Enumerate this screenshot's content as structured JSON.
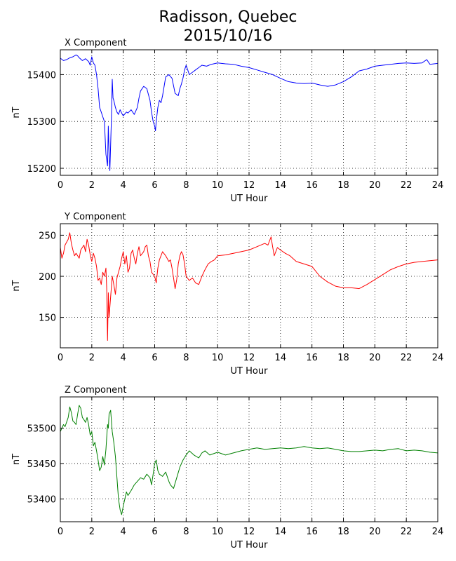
{
  "title": {
    "line1": "Radisson, Quebec",
    "line2": "2015/10/16"
  },
  "chart_data": [
    {
      "type": "line",
      "title": "X Component",
      "xlabel": "UT Hour",
      "ylabel": "nT",
      "xlim": [
        0,
        24
      ],
      "ylim": [
        15185,
        15453
      ],
      "xticks": [
        0,
        2,
        4,
        6,
        8,
        10,
        12,
        14,
        16,
        18,
        20,
        22,
        24
      ],
      "yticks": [
        15200,
        15300,
        15400
      ],
      "grid": true,
      "color": "#0000ff",
      "series": [
        {
          "x": [
            0,
            0.2,
            0.4,
            0.6,
            0.8,
            1.0,
            1.1,
            1.2,
            1.4,
            1.6,
            1.8,
            1.9,
            2.0,
            2.1,
            2.2,
            2.3,
            2.4,
            2.5,
            2.6,
            2.7,
            2.8,
            2.9,
            3.0,
            3.05,
            3.1,
            3.15,
            3.2,
            3.25,
            3.3,
            3.35,
            3.4,
            3.5,
            3.6,
            3.7,
            3.8,
            3.9,
            4.0,
            4.1,
            4.2,
            4.3,
            4.5,
            4.7,
            4.9,
            5.0,
            5.1,
            5.3,
            5.5,
            5.7,
            5.8,
            5.9,
            6.0,
            6.05,
            6.1,
            6.2,
            6.3,
            6.4,
            6.5,
            6.7,
            6.9,
            7.1,
            7.3,
            7.5,
            7.6,
            7.7,
            7.8,
            7.9,
            8.0,
            8.1,
            8.2,
            8.4,
            8.6,
            8.8,
            9.0,
            9.3,
            9.6,
            10.0,
            10.5,
            11.0,
            11.5,
            12.0,
            12.5,
            13.0,
            13.5,
            14.0,
            14.5,
            15.0,
            15.5,
            16.0,
            16.5,
            17.0,
            17.5,
            18.0,
            18.5,
            19.0,
            19.5,
            20.0,
            20.5,
            21.0,
            21.5,
            22.0,
            22.5,
            23.0,
            23.3,
            23.5,
            24.0
          ],
          "y": [
            15435,
            15430,
            15432,
            15436,
            15438,
            15442,
            15440,
            15436,
            15430,
            15434,
            15428,
            15420,
            15438,
            15425,
            15420,
            15400,
            15370,
            15330,
            15320,
            15310,
            15300,
            15230,
            15205,
            15290,
            15230,
            15195,
            15250,
            15310,
            15390,
            15350,
            15345,
            15330,
            15320,
            15315,
            15325,
            15318,
            15312,
            15316,
            15320,
            15318,
            15325,
            15315,
            15330,
            15350,
            15365,
            15375,
            15370,
            15345,
            15320,
            15300,
            15290,
            15280,
            15300,
            15330,
            15345,
            15340,
            15355,
            15395,
            15400,
            15392,
            15360,
            15355,
            15370,
            15380,
            15393,
            15410,
            15420,
            15410,
            15400,
            15405,
            15410,
            15415,
            15420,
            15418,
            15422,
            15425,
            15423,
            15422,
            15418,
            15415,
            15410,
            15405,
            15400,
            15392,
            15385,
            15382,
            15381,
            15382,
            15378,
            15375,
            15378,
            15385,
            15395,
            15408,
            15412,
            15418,
            15420,
            15422,
            15424,
            15425,
            15424,
            15425,
            15432,
            15422,
            15424
          ]
        }
      ]
    },
    {
      "type": "line",
      "title": "Y Component",
      "xlabel": "UT Hour",
      "ylabel": "nT",
      "xlim": [
        0,
        24
      ],
      "ylim": [
        113,
        264
      ],
      "xticks": [
        0,
        2,
        4,
        6,
        8,
        10,
        12,
        14,
        16,
        18,
        20,
        22,
        24
      ],
      "yticks": [
        150,
        200,
        250
      ],
      "grid": true,
      "color": "#ff0000",
      "series": [
        {
          "x": [
            0,
            0.1,
            0.2,
            0.3,
            0.5,
            0.6,
            0.7,
            0.8,
            0.9,
            1.0,
            1.2,
            1.3,
            1.5,
            1.6,
            1.7,
            1.8,
            1.9,
            2.0,
            2.1,
            2.2,
            2.3,
            2.4,
            2.5,
            2.6,
            2.7,
            2.8,
            2.9,
            2.95,
            3.0,
            3.05,
            3.1,
            3.2,
            3.3,
            3.4,
            3.5,
            3.6,
            3.7,
            3.8,
            3.9,
            4.0,
            4.1,
            4.2,
            4.3,
            4.4,
            4.5,
            4.6,
            4.7,
            4.8,
            4.9,
            5.0,
            5.1,
            5.3,
            5.4,
            5.5,
            5.6,
            5.7,
            5.8,
            6.0,
            6.1,
            6.2,
            6.3,
            6.5,
            6.7,
            6.9,
            7.0,
            7.1,
            7.2,
            7.3,
            7.4,
            7.5,
            7.6,
            7.7,
            7.8,
            7.9,
            8.0,
            8.2,
            8.4,
            8.6,
            8.8,
            9.0,
            9.2,
            9.4,
            9.6,
            9.8,
            10.0,
            10.5,
            11.0,
            11.5,
            12.0,
            12.5,
            13.0,
            13.2,
            13.4,
            13.5,
            13.6,
            13.8,
            14.0,
            14.3,
            14.6,
            15.0,
            15.5,
            16.0,
            16.5,
            17.0,
            17.5,
            18.0,
            18.5,
            19.0,
            19.5,
            20.0,
            20.5,
            21.0,
            21.5,
            22.0,
            22.5,
            23.0,
            23.5,
            24.0
          ],
          "y": [
            235,
            222,
            228,
            238,
            245,
            253,
            240,
            232,
            225,
            228,
            222,
            232,
            238,
            230,
            245,
            238,
            226,
            218,
            228,
            222,
            212,
            195,
            198,
            190,
            205,
            200,
            210,
            185,
            122,
            180,
            150,
            175,
            200,
            190,
            178,
            198,
            205,
            212,
            222,
            230,
            215,
            225,
            205,
            210,
            228,
            232,
            222,
            215,
            228,
            236,
            225,
            230,
            236,
            238,
            225,
            218,
            205,
            200,
            192,
            210,
            220,
            230,
            225,
            218,
            220,
            210,
            198,
            185,
            196,
            215,
            225,
            230,
            226,
            215,
            200,
            195,
            198,
            192,
            190,
            200,
            208,
            215,
            218,
            220,
            225,
            226,
            228,
            230,
            232,
            236,
            240,
            238,
            248,
            236,
            225,
            235,
            232,
            228,
            225,
            218,
            215,
            212,
            200,
            193,
            188,
            186,
            186,
            185,
            190,
            196,
            202,
            208,
            212,
            215,
            217,
            218,
            219,
            220
          ]
        }
      ]
    },
    {
      "type": "line",
      "title": "Z Component",
      "xlabel": "UT Hour",
      "ylabel": "nT",
      "xlim": [
        0,
        24
      ],
      "ylim": [
        53368,
        53544
      ],
      "xticks": [
        0,
        2,
        4,
        6,
        8,
        10,
        12,
        14,
        16,
        18,
        20,
        22,
        24
      ],
      "yticks": [
        53400,
        53450,
        53500
      ],
      "grid": true,
      "color": "#008000",
      "series": [
        {
          "x": [
            0,
            0.1,
            0.2,
            0.3,
            0.5,
            0.6,
            0.7,
            0.8,
            0.9,
            1.0,
            1.1,
            1.2,
            1.3,
            1.4,
            1.5,
            1.6,
            1.7,
            1.8,
            1.9,
            2.0,
            2.1,
            2.2,
            2.3,
            2.4,
            2.5,
            2.6,
            2.7,
            2.8,
            2.9,
            3.0,
            3.05,
            3.1,
            3.2,
            3.3,
            3.4,
            3.5,
            3.6,
            3.7,
            3.8,
            3.9,
            4.0,
            4.1,
            4.2,
            4.3,
            4.5,
            4.7,
            4.9,
            5.1,
            5.3,
            5.5,
            5.7,
            5.8,
            5.9,
            6.0,
            6.1,
            6.2,
            6.3,
            6.5,
            6.7,
            6.9,
            7.0,
            7.2,
            7.4,
            7.6,
            7.8,
            8.0,
            8.2,
            8.5,
            8.8,
            9.0,
            9.2,
            9.5,
            10.0,
            10.5,
            11.0,
            11.5,
            12.0,
            12.5,
            13.0,
            13.5,
            14.0,
            14.5,
            15.0,
            15.5,
            16.0,
            16.5,
            17.0,
            17.5,
            18.0,
            18.5,
            19.0,
            19.5,
            20.0,
            20.5,
            21.0,
            21.5,
            22.0,
            22.5,
            23.0,
            23.5,
            24.0
          ],
          "y": [
            53495,
            53500,
            53505,
            53502,
            53515,
            53530,
            53522,
            53510,
            53508,
            53505,
            53520,
            53532,
            53528,
            53515,
            53512,
            53508,
            53515,
            53505,
            53490,
            53495,
            53475,
            53480,
            53468,
            53455,
            53440,
            53445,
            53460,
            53448,
            53470,
            53505,
            53500,
            53520,
            53525,
            53495,
            53480,
            53460,
            53430,
            53400,
            53385,
            53378,
            53390,
            53400,
            53410,
            53405,
            53412,
            53420,
            53425,
            53430,
            53428,
            53435,
            53430,
            53420,
            53435,
            53450,
            53455,
            53440,
            53435,
            53432,
            53438,
            53425,
            53420,
            53415,
            53430,
            53445,
            53455,
            53462,
            53468,
            53462,
            53458,
            53465,
            53468,
            53462,
            53466,
            53462,
            53465,
            53468,
            53470,
            53472,
            53470,
            53471,
            53472,
            53471,
            53472,
            53474,
            53472,
            53471,
            53472,
            53470,
            53468,
            53467,
            53467,
            53468,
            53469,
            53468,
            53470,
            53471,
            53468,
            53469,
            53468,
            53466,
            53465
          ]
        }
      ]
    }
  ]
}
